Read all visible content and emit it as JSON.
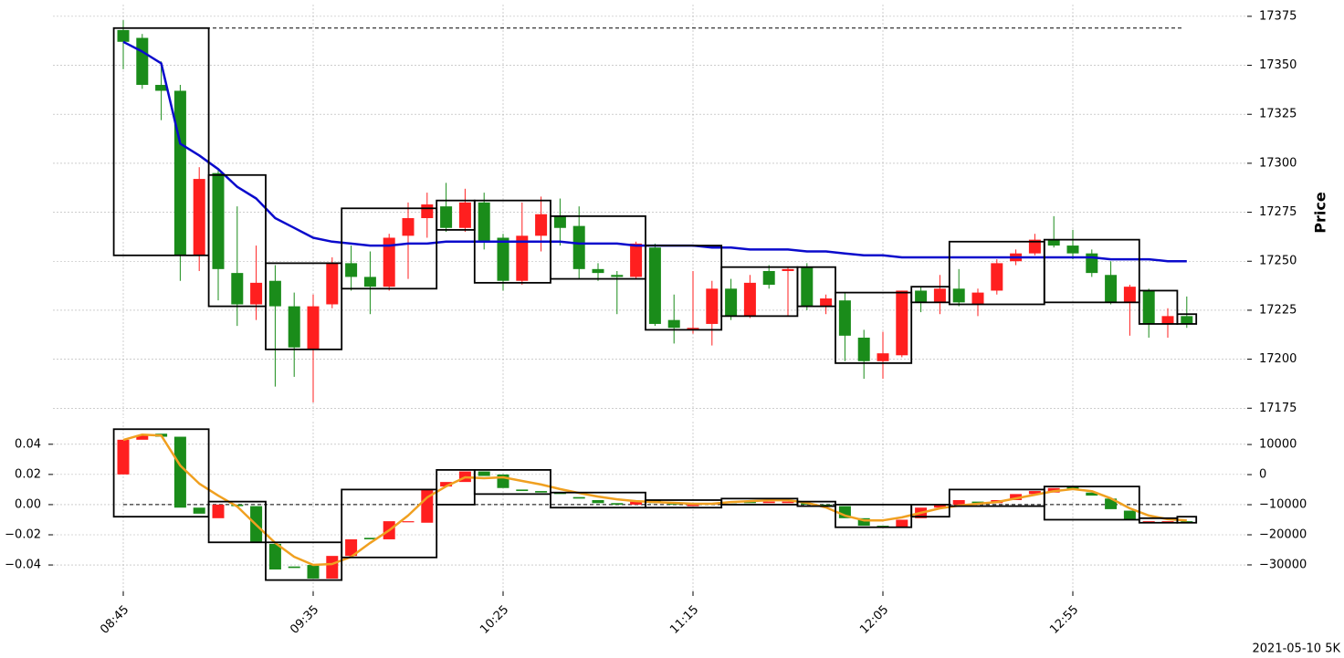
{
  "chart_data": [
    {
      "type": "candlestick",
      "ylabel": "Price",
      "ylim": [
        17170,
        17381
      ],
      "yticks": [
        17175,
        17200,
        17225,
        17250,
        17275,
        17300,
        17325,
        17350,
        17375
      ],
      "grid": true,
      "up_color": "#ff1f1f",
      "down_color": "#1a8c1a",
      "open": [
        17368,
        17364,
        17340,
        17337,
        17253,
        17295,
        17244,
        17228,
        17240,
        17227,
        17205,
        17228,
        17249,
        17242,
        17237,
        17263,
        17272,
        17278,
        17267,
        17280,
        17262,
        17240,
        17263,
        17273,
        17268,
        17246,
        17243,
        17242,
        17257,
        17220,
        17215,
        17218,
        17236,
        17222,
        17245,
        17245,
        17247,
        17227,
        17230,
        17211,
        17199,
        17202,
        17235,
        17229,
        17236,
        17228,
        17235,
        17250,
        17254,
        17261,
        17258,
        17254,
        17243,
        17229,
        17235,
        17218,
        17222
      ],
      "high": [
        17373,
        17366,
        17352,
        17340,
        17298,
        17297,
        17278,
        17258,
        17248,
        17234,
        17233,
        17252,
        17258,
        17255,
        17264,
        17280,
        17285,
        17290,
        17287,
        17285,
        17264,
        17280,
        17283,
        17282,
        17278,
        17249,
        17245,
        17260,
        17259,
        17233,
        17245,
        17240,
        17241,
        17243,
        17248,
        17247,
        17249,
        17233,
        17234,
        17215,
        17214,
        17235,
        17237,
        17243,
        17246,
        17236,
        17251,
        17256,
        17264,
        17273,
        17266,
        17256,
        17250,
        17238,
        17236,
        17226,
        17232
      ],
      "low": [
        17348,
        17338,
        17322,
        17240,
        17245,
        17230,
        17217,
        17220,
        17186,
        17191,
        17178,
        17226,
        17235,
        17223,
        17235,
        17241,
        17262,
        17265,
        17265,
        17256,
        17235,
        17238,
        17255,
        17258,
        17241,
        17240,
        17223,
        17241,
        17217,
        17208,
        17213,
        17207,
        17220,
        17221,
        17236,
        17222,
        17225,
        17223,
        17199,
        17190,
        17190,
        17201,
        17224,
        17223,
        17227,
        17222,
        17233,
        17248,
        17253,
        17257,
        17251,
        17242,
        17228,
        17212,
        17211,
        17211,
        17216
      ],
      "close": [
        17362,
        17340,
        17337,
        17253,
        17292,
        17246,
        17228,
        17239,
        17227,
        17206,
        17227,
        17249,
        17242,
        17237,
        17262,
        17272,
        17279,
        17267,
        17280,
        17260,
        17240,
        17263,
        17274,
        17267,
        17246,
        17244,
        17242,
        17259,
        17218,
        17216,
        17216,
        17236,
        17222,
        17239,
        17238,
        17246,
        17227,
        17231,
        17212,
        17199,
        17203,
        17235,
        17229,
        17236,
        17229,
        17234,
        17249,
        17254,
        17261,
        17258,
        17254,
        17244,
        17229,
        17237,
        17218,
        17222,
        17218
      ],
      "series": [
        {
          "color": "#0a0acc",
          "values": [
            17362,
            17357,
            17351,
            17310,
            17304,
            17297,
            17288,
            17282,
            17272,
            17267,
            17262,
            17260,
            17259,
            17258,
            17258,
            17259,
            17259,
            17260,
            17260,
            17260,
            17260,
            17260,
            17260,
            17260,
            17259,
            17259,
            17259,
            17258,
            17258,
            17258,
            17258,
            17257,
            17257,
            17256,
            17256,
            17256,
            17255,
            17255,
            17254,
            17253,
            17253,
            17252,
            17252,
            17252,
            17252,
            17252,
            17252,
            17252,
            17252,
            17252,
            17252,
            17252,
            17251,
            17251,
            17251,
            17250,
            17250
          ]
        }
      ],
      "box_color": "#000000",
      "boxes": [
        {
          "start": 0,
          "end": 4,
          "high": 17369,
          "low": 17253
        },
        {
          "start": 5,
          "end": 7,
          "high": 17294,
          "low": 17227
        },
        {
          "start": 8,
          "end": 11,
          "high": 17249,
          "low": 17205
        },
        {
          "start": 12,
          "end": 16,
          "high": 17277,
          "low": 17236
        },
        {
          "start": 17,
          "end": 18,
          "high": 17281,
          "low": 17266
        },
        {
          "start": 19,
          "end": 22,
          "high": 17281,
          "low": 17239
        },
        {
          "start": 23,
          "end": 27,
          "high": 17273,
          "low": 17241
        },
        {
          "start": 28,
          "end": 31,
          "high": 17258,
          "low": 17215
        },
        {
          "start": 32,
          "end": 35,
          "high": 17247,
          "low": 17222
        },
        {
          "start": 36,
          "end": 37,
          "high": 17247,
          "low": 17227
        },
        {
          "start": 38,
          "end": 41,
          "high": 17234,
          "low": 17198
        },
        {
          "start": 42,
          "end": 43,
          "high": 17237,
          "low": 17229
        },
        {
          "start": 44,
          "end": 48,
          "high": 17260,
          "low": 17228
        },
        {
          "start": 49,
          "end": 53,
          "high": 17261,
          "low": 17229
        },
        {
          "start": 54,
          "end": 55,
          "high": 17235,
          "low": 17218
        },
        {
          "start": 56,
          "end": 56,
          "high": 17223,
          "low": 17218
        }
      ],
      "ref_line": 17369
    },
    {
      "type": "candlestick",
      "categories": [
        "08:45",
        null,
        null,
        null,
        null,
        null,
        null,
        null,
        null,
        null,
        "09:35",
        null,
        null,
        null,
        null,
        null,
        null,
        null,
        null,
        null,
        "10:25",
        null,
        null,
        null,
        null,
        null,
        null,
        null,
        null,
        null,
        "11:15",
        null,
        null,
        null,
        null,
        null,
        null,
        null,
        null,
        null,
        "12:05",
        null,
        null,
        null,
        null,
        null,
        null,
        null,
        null,
        null,
        "12:55",
        null,
        null,
        null,
        null,
        null,
        null
      ],
      "ylim": [
        -0.0575,
        0.055
      ],
      "yticks": [
        {
          "value": -0.04,
          "label": "−0.04"
        },
        {
          "value": -0.02,
          "label": "−0.02"
        },
        {
          "value": 0,
          "label": "0.00"
        },
        0.02,
        0.04
      ],
      "y2lim": [
        -38800,
        17600
      ],
      "y2ticks": [
        {
          "value": -30000,
          "label": "−30000"
        },
        {
          "value": -20000,
          "label": "−20000"
        },
        {
          "value": -10000,
          "label": "−10000"
        },
        0,
        10000
      ],
      "grid": true,
      "up_color": "#ff1f1f",
      "down_color": "#1a8c1a",
      "open": [
        0.02,
        0.043,
        0.047,
        0.045,
        -0.002,
        -0.009,
        0.0,
        -0.001,
        -0.026,
        -0.041,
        -0.04,
        -0.049,
        -0.034,
        -0.022,
        -0.023,
        -0.011,
        -0.012,
        0.012,
        0.015,
        0.022,
        0.02,
        0.01,
        0.009,
        0.008,
        0.005,
        0.003,
        0.001,
        0.0,
        0.003,
        0.001,
        -0.001,
        0.0,
        0.002,
        0.002,
        0.001,
        0.001,
        0.001,
        0.0,
        -0.001,
        -0.009,
        -0.014,
        -0.015,
        -0.009,
        -0.002,
        0.0,
        0.002,
        0.001,
        0.003,
        0.007,
        0.008,
        0.012,
        0.008,
        0.004,
        -0.004,
        -0.012,
        -0.012,
        -0.011
      ],
      "close": [
        0.043,
        0.046,
        0.045,
        -0.002,
        -0.006,
        0.0,
        -0.001,
        -0.025,
        -0.043,
        -0.042,
        -0.049,
        -0.034,
        -0.023,
        -0.023,
        -0.011,
        -0.011,
        0.01,
        0.015,
        0.022,
        0.019,
        0.011,
        0.009,
        0.008,
        0.007,
        0.004,
        0.001,
        0.0,
        0.002,
        0.001,
        0.0,
        0.001,
        0.001,
        0.001,
        0.001,
        0.002,
        0.002,
        0.0,
        -0.001,
        -0.009,
        -0.014,
        -0.015,
        -0.01,
        -0.002,
        0.0,
        0.003,
        0.001,
        0.003,
        0.007,
        0.009,
        0.011,
        0.01,
        0.006,
        -0.003,
        -0.01,
        -0.011,
        -0.011,
        -0.012
      ],
      "series": [
        {
          "color": "#f0a020",
          "axis": "y2",
          "values": [
            11500,
            13300,
            13000,
            3000,
            -3000,
            -7000,
            -10600,
            -16700,
            -22700,
            -27300,
            -30000,
            -29700,
            -27300,
            -22700,
            -18500,
            -13600,
            -7600,
            -3900,
            -900,
            -1200,
            -900,
            -2100,
            -3300,
            -4800,
            -6100,
            -7300,
            -8200,
            -8800,
            -9100,
            -9400,
            -9700,
            -9700,
            -9100,
            -8800,
            -8500,
            -8500,
            -9400,
            -10900,
            -13600,
            -15200,
            -15200,
            -14200,
            -12700,
            -11200,
            -10300,
            -9700,
            -9100,
            -7900,
            -6700,
            -5500,
            -4800,
            -5500,
            -7900,
            -11200,
            -13600,
            -14800,
            -15200
          ]
        }
      ],
      "box_color": "#000000",
      "boxes": [
        {
          "start": 0,
          "end": 4,
          "high": 0.05,
          "low": -0.008
        },
        {
          "start": 5,
          "end": 7,
          "high": 0.002,
          "low": -0.025
        },
        {
          "start": 8,
          "end": 11,
          "high": -0.025,
          "low": -0.05
        },
        {
          "start": 12,
          "end": 16,
          "high": 0.01,
          "low": -0.035
        },
        {
          "start": 17,
          "end": 18,
          "high": 0.023,
          "low": 0.0
        },
        {
          "start": 19,
          "end": 22,
          "high": 0.023,
          "low": 0.007
        },
        {
          "start": 23,
          "end": 27,
          "high": 0.008,
          "low": -0.002
        },
        {
          "start": 28,
          "end": 31,
          "high": 0.003,
          "low": -0.002
        },
        {
          "start": 32,
          "end": 35,
          "high": 0.004,
          "low": 0.0
        },
        {
          "start": 36,
          "end": 37,
          "high": 0.002,
          "low": -0.001
        },
        {
          "start": 38,
          "end": 41,
          "high": 0.0,
          "low": -0.015
        },
        {
          "start": 42,
          "end": 43,
          "high": 0.0,
          "low": -0.008
        },
        {
          "start": 44,
          "end": 48,
          "high": 0.01,
          "low": -0.001
        },
        {
          "start": 49,
          "end": 53,
          "high": 0.012,
          "low": -0.01
        },
        {
          "start": 54,
          "end": 55,
          "high": -0.009,
          "low": -0.012
        },
        {
          "start": 56,
          "end": 56,
          "high": -0.008,
          "low": -0.012
        }
      ],
      "ref_line": 0
    }
  ],
  "caption": "2021-05-10 5K"
}
